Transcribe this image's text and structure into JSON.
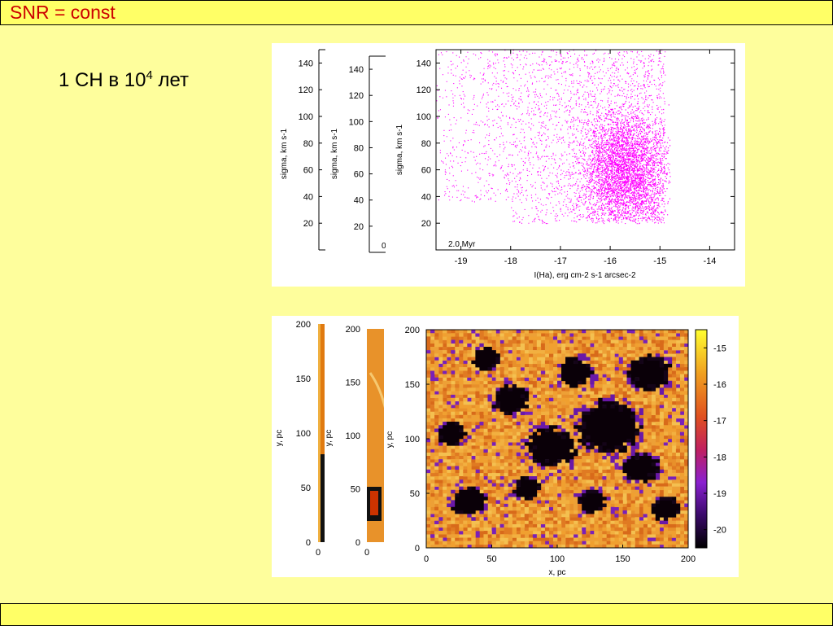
{
  "slide": {
    "title": "SNR = const",
    "subtitle_pre": "1 СН в 10",
    "subtitle_sup": "4",
    "subtitle_post": " лет"
  },
  "chart_data": [
    {
      "type": "scatter",
      "title": "",
      "label": "2.0 Myr",
      "xlabel": "I(Ha), erg cm-2 s-1 arcsec-2",
      "ylabel": "sigma, km s-1",
      "xlim": [
        -19.5,
        -13.5
      ],
      "ylim": [
        0,
        150
      ],
      "x_ticks": [
        "-19",
        "-18",
        "-17",
        "-16",
        "-15",
        "-14"
      ],
      "y_ticks": [
        "20",
        "40",
        "60",
        "80",
        "100",
        "120",
        "140"
      ],
      "color": "#ff00ff",
      "point_density": {
        "description": "points concentrated near x=-15.8, sigma 40-100",
        "core_x": -15.7,
        "core_y": 60
      }
    },
    {
      "type": "heatmap",
      "xlabel": "x, pc",
      "ylabel": "y, pc",
      "xlim": [
        0,
        200
      ],
      "ylim": [
        0,
        200
      ],
      "x_ticks": [
        "0",
        "50",
        "100",
        "150",
        "200"
      ],
      "y_ticks": [
        "0",
        "50",
        "100",
        "150",
        "200"
      ],
      "colorbar_ticks": [
        "-15",
        "-16",
        "-17",
        "-18",
        "-19",
        "-20"
      ],
      "colorbar_range": [
        -20.5,
        -14.5
      ]
    }
  ],
  "back_panels": {
    "scatter_y_ticks_a": [
      "20",
      "40",
      "60",
      "80",
      "100",
      "120",
      "140"
    ],
    "scatter_y_ticks_b": [
      "20",
      "40",
      "60",
      "80",
      "100",
      "120",
      "140"
    ],
    "scatter_ylabel": "sigma, km s-1",
    "scatter_b_partial": "0.",
    "heat_y_ticks": [
      "0",
      "50",
      "100",
      "150",
      "200"
    ],
    "heat_x0": "0",
    "heat_ylabel": "y, pc"
  },
  "colors": {
    "background": "#fefe9c",
    "bar": "#ffff66",
    "title": "#cc0000",
    "scatter_points": "#ff00ff"
  }
}
